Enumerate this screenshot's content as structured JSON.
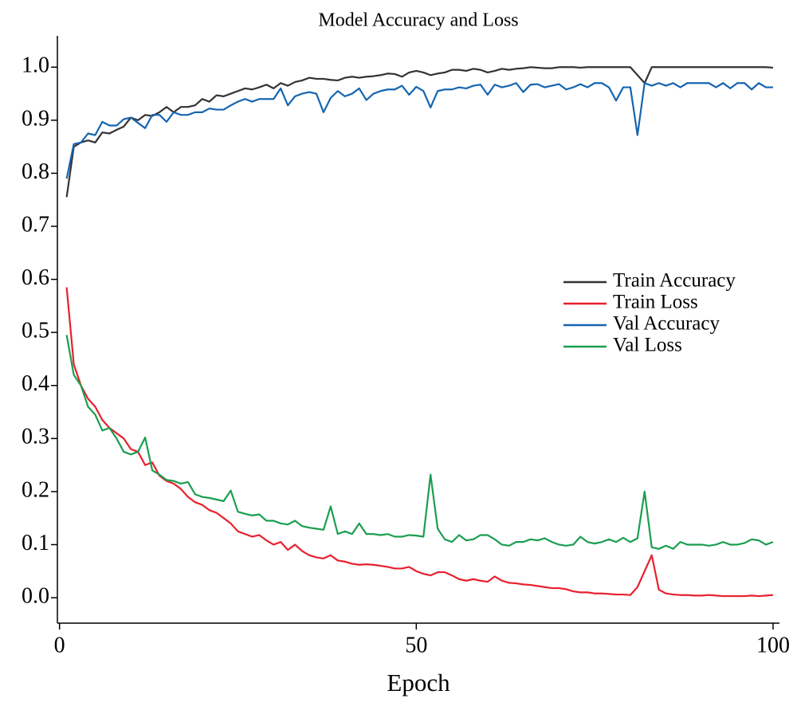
{
  "chart_data": {
    "type": "line",
    "title": "Model Accuracy and Loss",
    "xlabel": "Epoch",
    "x": [
      1,
      2,
      3,
      4,
      5,
      6,
      7,
      8,
      9,
      10,
      11,
      12,
      13,
      14,
      15,
      16,
      17,
      18,
      19,
      20,
      21,
      22,
      23,
      24,
      25,
      26,
      27,
      28,
      29,
      30,
      31,
      32,
      33,
      34,
      35,
      36,
      37,
      38,
      39,
      40,
      41,
      42,
      43,
      44,
      45,
      46,
      47,
      48,
      49,
      50,
      51,
      52,
      53,
      54,
      55,
      56,
      57,
      58,
      59,
      60,
      61,
      62,
      63,
      64,
      65,
      66,
      67,
      68,
      69,
      70,
      71,
      72,
      73,
      74,
      75,
      76,
      77,
      78,
      79,
      80,
      81,
      82,
      83,
      84,
      85,
      86,
      87,
      88,
      89,
      90,
      91,
      92,
      93,
      94,
      95,
      96,
      97,
      98,
      99,
      100
    ],
    "series": [
      {
        "name": "Train Accuracy",
        "color": "#333333",
        "values": [
          0.755,
          0.85,
          0.858,
          0.862,
          0.858,
          0.877,
          0.875,
          0.882,
          0.888,
          0.905,
          0.9,
          0.91,
          0.908,
          0.915,
          0.925,
          0.915,
          0.925,
          0.925,
          0.928,
          0.94,
          0.935,
          0.947,
          0.945,
          0.95,
          0.955,
          0.96,
          0.958,
          0.962,
          0.967,
          0.96,
          0.97,
          0.965,
          0.972,
          0.975,
          0.98,
          0.978,
          0.978,
          0.976,
          0.975,
          0.98,
          0.982,
          0.98,
          0.982,
          0.983,
          0.985,
          0.988,
          0.987,
          0.982,
          0.99,
          0.993,
          0.99,
          0.985,
          0.988,
          0.99,
          0.995,
          0.995,
          0.993,
          0.997,
          0.995,
          0.99,
          0.993,
          0.997,
          0.995,
          0.997,
          0.998,
          1.0,
          0.999,
          0.998,
          0.998,
          1.0,
          1.0,
          1.0,
          0.999,
          1.0,
          1.0,
          1.0,
          1.0,
          1.0,
          1.0,
          1.0,
          0.985,
          0.97,
          1.0,
          1.0,
          1.0,
          1.0,
          1.0,
          1.0,
          1.0,
          1.0,
          1.0,
          1.0,
          1.0,
          1.0,
          1.0,
          1.0,
          1.0,
          1.0,
          1.0,
          0.999
        ]
      },
      {
        "name": "Train Loss",
        "color": "#e8202e",
        "values": [
          0.585,
          0.44,
          0.4,
          0.375,
          0.36,
          0.335,
          0.32,
          0.31,
          0.3,
          0.28,
          0.275,
          0.25,
          0.255,
          0.23,
          0.22,
          0.215,
          0.205,
          0.19,
          0.18,
          0.175,
          0.165,
          0.16,
          0.15,
          0.14,
          0.125,
          0.12,
          0.115,
          0.118,
          0.108,
          0.1,
          0.105,
          0.09,
          0.1,
          0.088,
          0.08,
          0.076,
          0.074,
          0.08,
          0.07,
          0.068,
          0.064,
          0.062,
          0.063,
          0.062,
          0.06,
          0.058,
          0.055,
          0.055,
          0.058,
          0.05,
          0.045,
          0.042,
          0.048,
          0.048,
          0.042,
          0.035,
          0.032,
          0.035,
          0.032,
          0.03,
          0.04,
          0.032,
          0.028,
          0.027,
          0.025,
          0.024,
          0.022,
          0.02,
          0.018,
          0.018,
          0.016,
          0.012,
          0.01,
          0.01,
          0.008,
          0.008,
          0.007,
          0.006,
          0.006,
          0.005,
          0.02,
          0.05,
          0.08,
          0.015,
          0.008,
          0.006,
          0.005,
          0.005,
          0.004,
          0.004,
          0.005,
          0.004,
          0.003,
          0.003,
          0.003,
          0.003,
          0.004,
          0.003,
          0.004,
          0.005
        ]
      },
      {
        "name": "Val Accuracy",
        "color": "#1565b0",
        "values": [
          0.79,
          0.855,
          0.858,
          0.875,
          0.872,
          0.897,
          0.89,
          0.89,
          0.902,
          0.905,
          0.895,
          0.885,
          0.91,
          0.91,
          0.897,
          0.915,
          0.91,
          0.91,
          0.915,
          0.915,
          0.922,
          0.92,
          0.92,
          0.928,
          0.935,
          0.94,
          0.935,
          0.94,
          0.94,
          0.94,
          0.96,
          0.928,
          0.945,
          0.95,
          0.953,
          0.95,
          0.915,
          0.942,
          0.955,
          0.945,
          0.95,
          0.96,
          0.938,
          0.95,
          0.955,
          0.958,
          0.958,
          0.965,
          0.948,
          0.963,
          0.955,
          0.924,
          0.955,
          0.958,
          0.958,
          0.962,
          0.96,
          0.965,
          0.967,
          0.948,
          0.967,
          0.962,
          0.965,
          0.97,
          0.953,
          0.967,
          0.968,
          0.962,
          0.965,
          0.968,
          0.958,
          0.962,
          0.968,
          0.962,
          0.97,
          0.97,
          0.962,
          0.937,
          0.962,
          0.962,
          0.872,
          0.97,
          0.965,
          0.97,
          0.965,
          0.97,
          0.962,
          0.97,
          0.97,
          0.97,
          0.97,
          0.962,
          0.97,
          0.96,
          0.97,
          0.97,
          0.958,
          0.97,
          0.962,
          0.962
        ]
      },
      {
        "name": "Val Loss",
        "color": "#1a9e50",
        "values": [
          0.495,
          0.42,
          0.4,
          0.36,
          0.345,
          0.315,
          0.32,
          0.3,
          0.275,
          0.27,
          0.275,
          0.302,
          0.24,
          0.232,
          0.222,
          0.22,
          0.215,
          0.218,
          0.195,
          0.19,
          0.188,
          0.185,
          0.182,
          0.202,
          0.162,
          0.158,
          0.155,
          0.157,
          0.145,
          0.145,
          0.14,
          0.138,
          0.145,
          0.135,
          0.132,
          0.13,
          0.128,
          0.172,
          0.12,
          0.125,
          0.12,
          0.14,
          0.12,
          0.12,
          0.118,
          0.12,
          0.115,
          0.115,
          0.118,
          0.117,
          0.115,
          0.232,
          0.13,
          0.11,
          0.105,
          0.118,
          0.108,
          0.11,
          0.118,
          0.118,
          0.11,
          0.1,
          0.098,
          0.105,
          0.105,
          0.11,
          0.108,
          0.112,
          0.105,
          0.1,
          0.098,
          0.1,
          0.115,
          0.105,
          0.102,
          0.105,
          0.11,
          0.105,
          0.113,
          0.105,
          0.112,
          0.2,
          0.095,
          0.092,
          0.098,
          0.092,
          0.105,
          0.1,
          0.1,
          0.1,
          0.098,
          0.1,
          0.105,
          0.1,
          0.1,
          0.103,
          0.11,
          0.108,
          0.1,
          0.105
        ]
      }
    ],
    "xlim": [
      -0.3,
      100.9
    ],
    "xticks": [
      0,
      50,
      100
    ],
    "ylim": [
      -0.048,
      1.059
    ],
    "yticks": [
      {
        "value": 0,
        "label": "0.0"
      },
      0.1,
      0.2,
      0.3,
      0.4,
      0.5,
      0.6,
      0.7,
      0.8,
      0.9,
      {
        "value": 1,
        "label": "1.0"
      }
    ],
    "grid": false,
    "legend": "center right"
  }
}
